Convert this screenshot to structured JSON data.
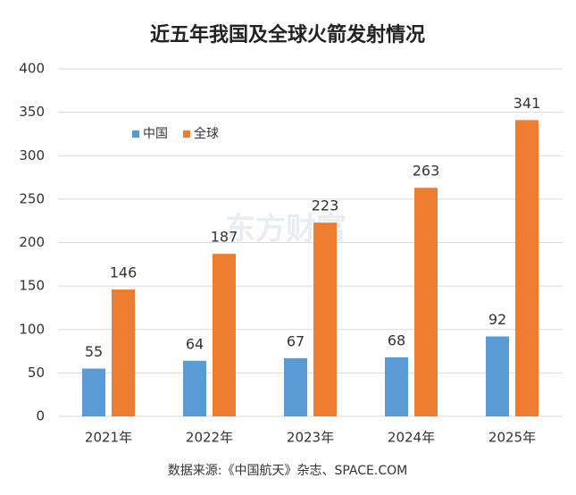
{
  "chart_data": {
    "type": "bar",
    "title": "近五年我国及全球火箭发射情况",
    "categories": [
      "2021年",
      "2022年",
      "2023年",
      "2024年",
      "2025年"
    ],
    "series": [
      {
        "name": "中国",
        "color": "#5b9bd5",
        "values": [
          55,
          64,
          67,
          68,
          92
        ]
      },
      {
        "name": "全球",
        "color": "#ed7d31",
        "values": [
          146,
          187,
          223,
          263,
          341
        ]
      }
    ],
    "ylim": [
      0,
      400
    ],
    "yticks": [
      0,
      50,
      100,
      150,
      200,
      250,
      300,
      350,
      400
    ],
    "grid": true,
    "legend": "top-left",
    "watermark": "东方财富",
    "source": "数据来源:《中国航天》杂志、SPACE.COM"
  }
}
